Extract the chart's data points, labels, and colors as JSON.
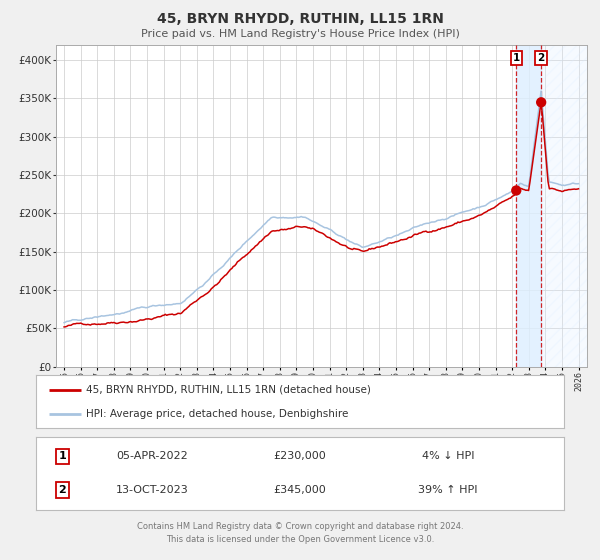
{
  "title": "45, BRYN RHYDD, RUTHIN, LL15 1RN",
  "subtitle": "Price paid vs. HM Land Registry's House Price Index (HPI)",
  "legend_line1": "45, BRYN RHYDD, RUTHIN, LL15 1RN (detached house)",
  "legend_line2": "HPI: Average price, detached house, Denbighshire",
  "transaction1_date": "05-APR-2022",
  "transaction1_price": 230000,
  "transaction1_hpi": "4% ↓ HPI",
  "transaction2_date": "13-OCT-2023",
  "transaction2_price": 345000,
  "transaction2_hpi": "39% ↑ HPI",
  "footer1": "Contains HM Land Registry data © Crown copyright and database right 2024.",
  "footer2": "This data is licensed under the Open Government Licence v3.0.",
  "hpi_color": "#a8c4e0",
  "price_color": "#cc0000",
  "dot_color": "#cc0000",
  "vline_color": "#cc0000",
  "shade_color": "#ddeeff",
  "background_color": "#f0f0f0",
  "plot_bg_color": "#ffffff",
  "grid_color": "#cccccc",
  "ylim_min": 0,
  "ylim_max": 420000,
  "xlim_start": 1994.5,
  "xlim_end": 2026.5,
  "t1_year": 2022.25,
  "t2_year": 2023.75
}
